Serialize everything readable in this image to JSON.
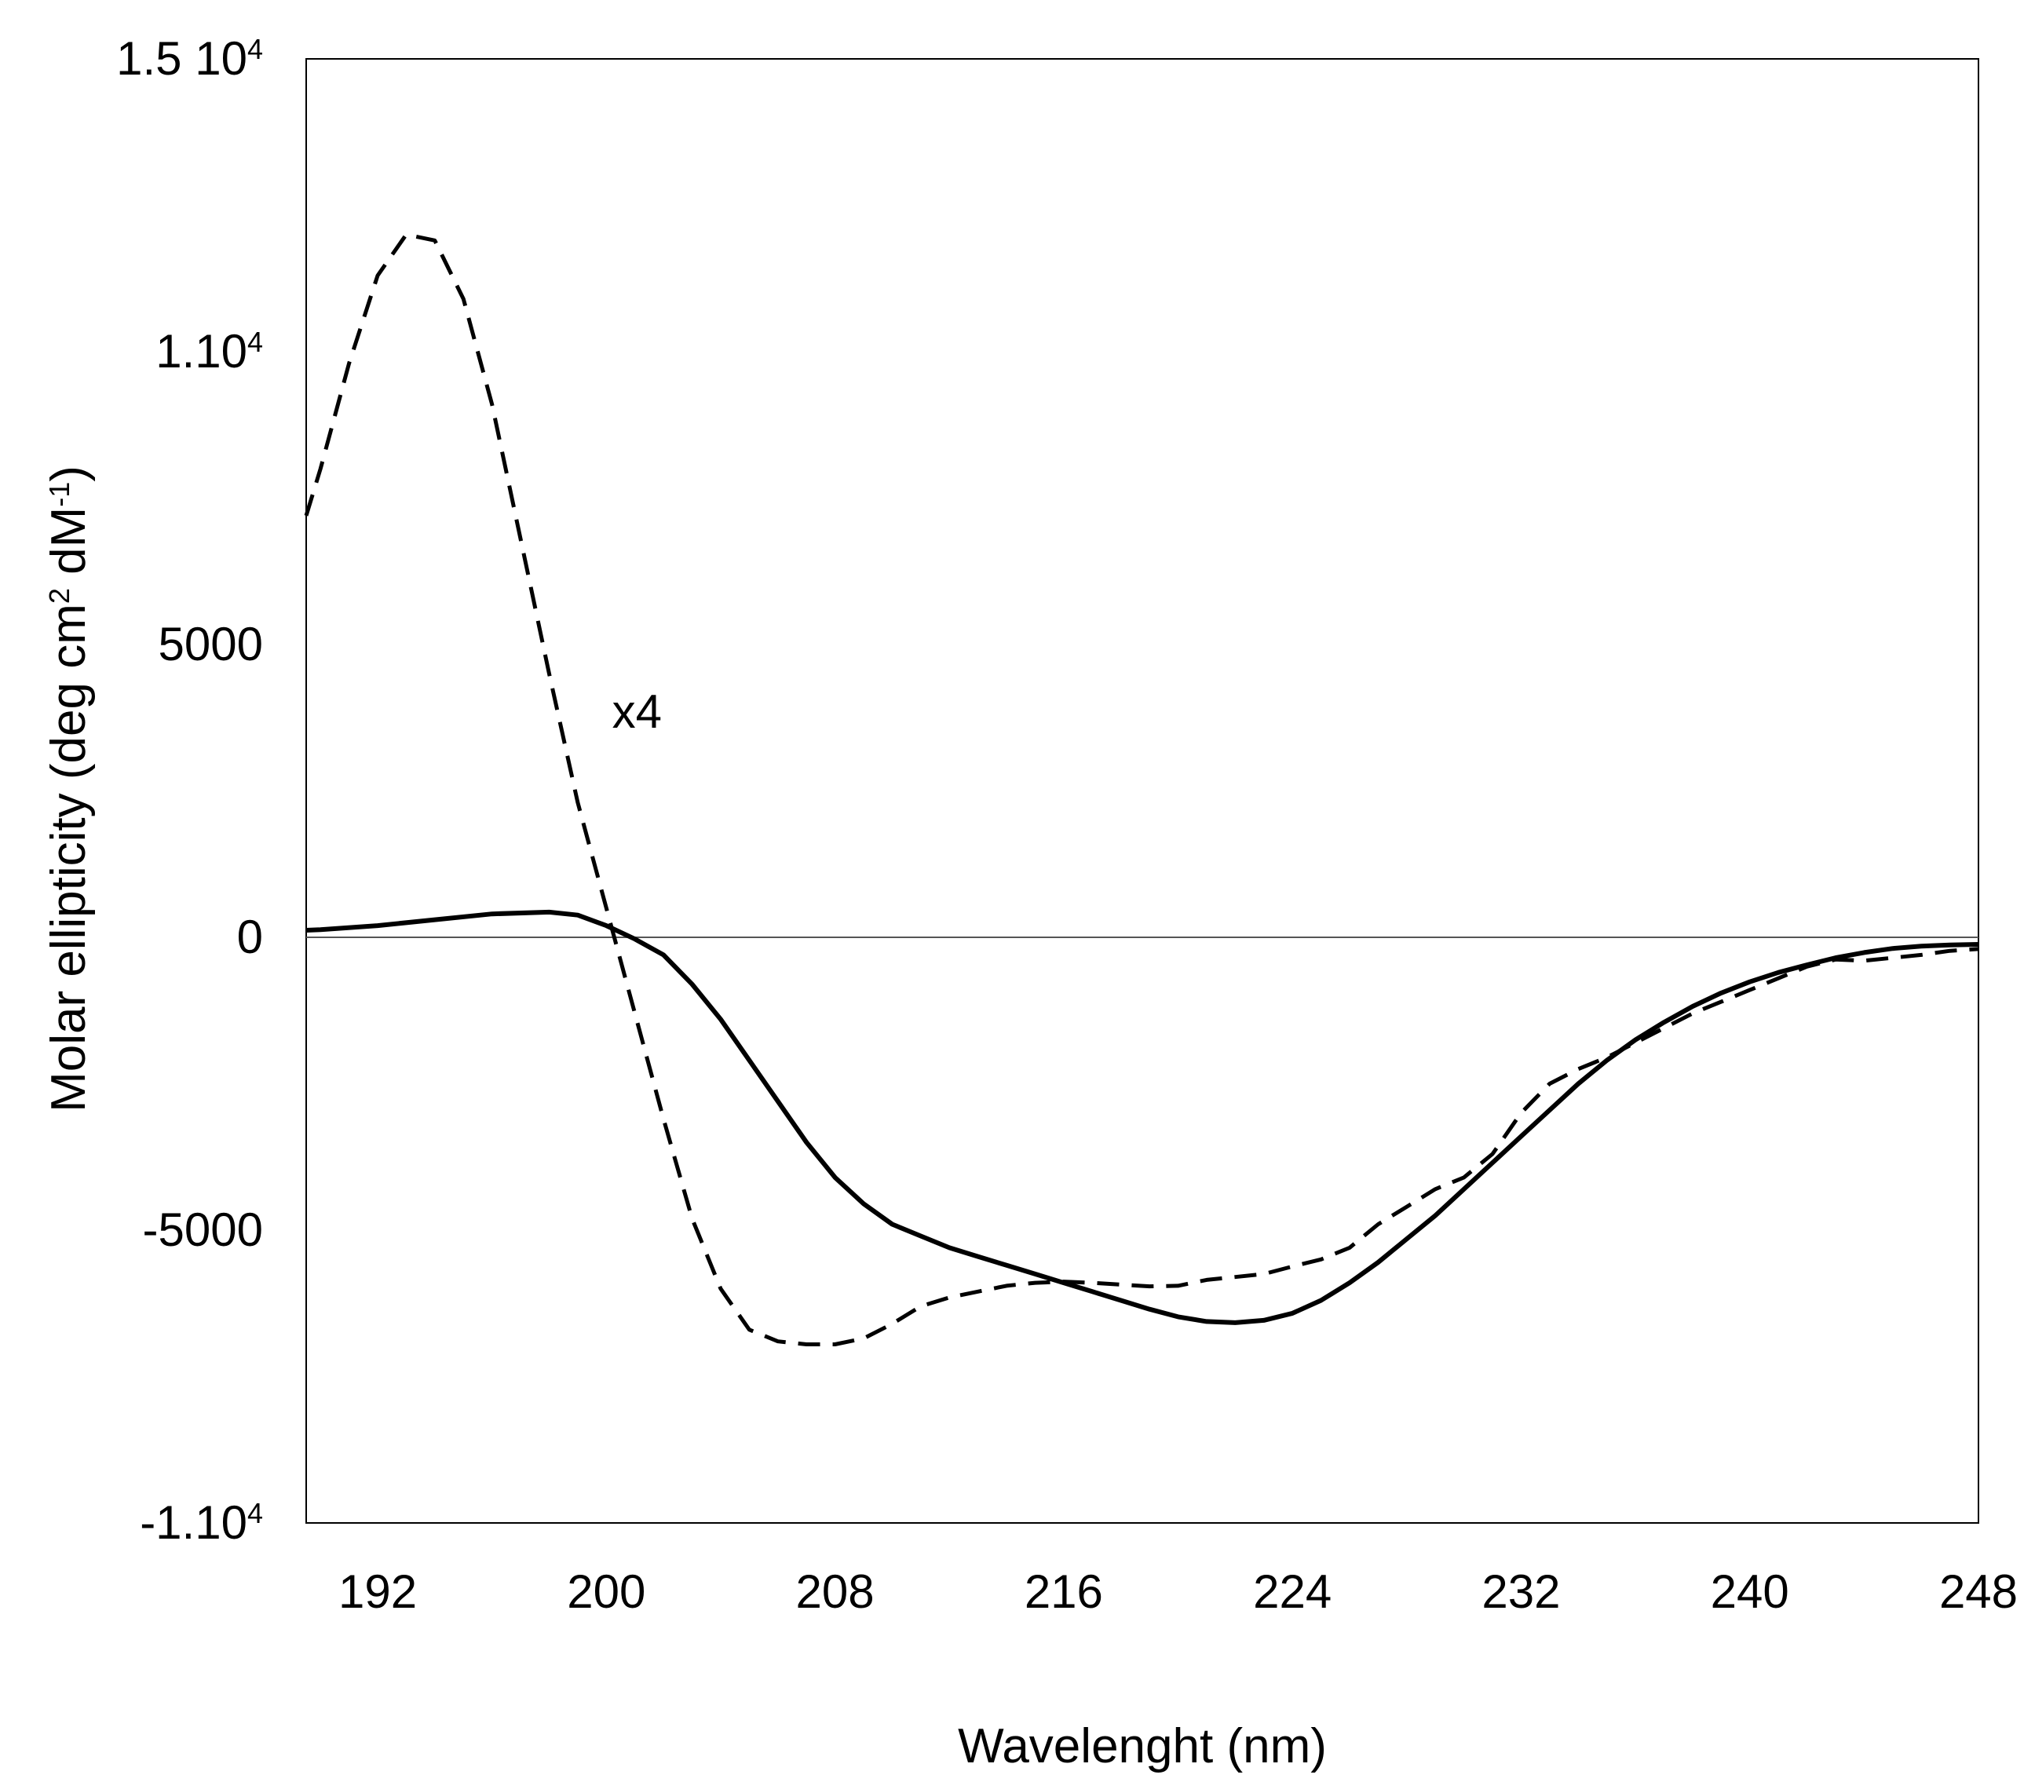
{
  "chart_data": {
    "type": "line",
    "title": "",
    "xlabel": "Wavelenght (nm)",
    "ylabel": {
      "prefix": "Molar ellipticity (deg cm",
      "sup1": "2",
      "middle": " dM",
      "sup2": "-1",
      "suffix": ")"
    },
    "xlim": [
      189.5,
      248
    ],
    "ylim": [
      -10000,
      15000
    ],
    "x_ticks": [
      192,
      200,
      208,
      216,
      224,
      232,
      240,
      248
    ],
    "x_tick_labels": [
      "192",
      "200",
      "208",
      "216",
      "224",
      "232",
      "240",
      "248"
    ],
    "y_ticks": [
      {
        "value": 15000,
        "base": "1.5 10",
        "sup": "4"
      },
      {
        "value": 10000,
        "base": "1.10",
        "sup": "4"
      },
      {
        "value": 5000,
        "base": "5000",
        "sup": ""
      },
      {
        "value": 0,
        "base": "0",
        "sup": ""
      },
      {
        "value": -5000,
        "base": "-5000",
        "sup": ""
      },
      {
        "value": -10000,
        "base": "-1.10",
        "sup": "4"
      }
    ],
    "zero_line": true,
    "grid": false,
    "annotations": [
      {
        "text": "x4",
        "x": 200.2,
        "y": 3850
      }
    ],
    "series": [
      {
        "style": "solid",
        "color": "#000000",
        "x": [
          189.5,
          190,
          192,
          194,
          196,
          198,
          199,
          200,
          201,
          202,
          203,
          204,
          205,
          206,
          207,
          208,
          209,
          210,
          211,
          212,
          213,
          214,
          215,
          216,
          217,
          218,
          219,
          220,
          221,
          222,
          223,
          224,
          225,
          226,
          227,
          228,
          229,
          230,
          231,
          232,
          233,
          234,
          235,
          236,
          237,
          238,
          239,
          240,
          241,
          242,
          243,
          244,
          245,
          246,
          247,
          248
        ],
        "y": [
          120,
          130,
          200,
          300,
          400,
          430,
          380,
          200,
          -30,
          -300,
          -800,
          -1400,
          -2100,
          -2800,
          -3500,
          -4100,
          -4550,
          -4900,
          -5100,
          -5300,
          -5450,
          -5600,
          -5750,
          -5900,
          -6050,
          -6200,
          -6350,
          -6480,
          -6560,
          -6580,
          -6540,
          -6420,
          -6200,
          -5900,
          -5550,
          -5150,
          -4750,
          -4300,
          -3850,
          -3400,
          -2950,
          -2500,
          -2100,
          -1750,
          -1450,
          -1180,
          -950,
          -760,
          -600,
          -470,
          -350,
          -260,
          -190,
          -150,
          -130,
          -120
        ]
      },
      {
        "style": "dashed",
        "color": "#000000",
        "x": [
          189.5,
          190,
          191,
          192,
          193,
          194,
          195,
          196,
          197,
          198,
          199,
          200,
          201,
          202,
          203,
          204,
          205,
          206,
          207,
          208,
          209,
          210,
          211,
          212,
          213,
          214,
          215,
          216,
          217,
          218,
          219,
          220,
          221,
          222,
          223,
          224,
          225,
          226,
          227,
          228,
          229,
          230,
          231,
          232,
          233,
          234,
          235,
          236,
          237,
          238,
          239,
          240,
          241,
          242,
          243,
          244,
          245,
          246,
          247,
          248
        ],
        "y": [
          7200,
          8000,
          9800,
          11300,
          12000,
          11900,
          10900,
          9100,
          6800,
          4500,
          2300,
          500,
          -1300,
          -3100,
          -4800,
          -6000,
          -6700,
          -6900,
          -6950,
          -6950,
          -6850,
          -6600,
          -6300,
          -6150,
          -6050,
          -5950,
          -5900,
          -5880,
          -5900,
          -5930,
          -5960,
          -5950,
          -5850,
          -5800,
          -5750,
          -5620,
          -5500,
          -5300,
          -4900,
          -4600,
          -4300,
          -4100,
          -3700,
          -3000,
          -2500,
          -2250,
          -2050,
          -1800,
          -1550,
          -1300,
          -1100,
          -900,
          -700,
          -500,
          -380,
          -400,
          -350,
          -300,
          -230,
          -200
        ]
      }
    ]
  }
}
